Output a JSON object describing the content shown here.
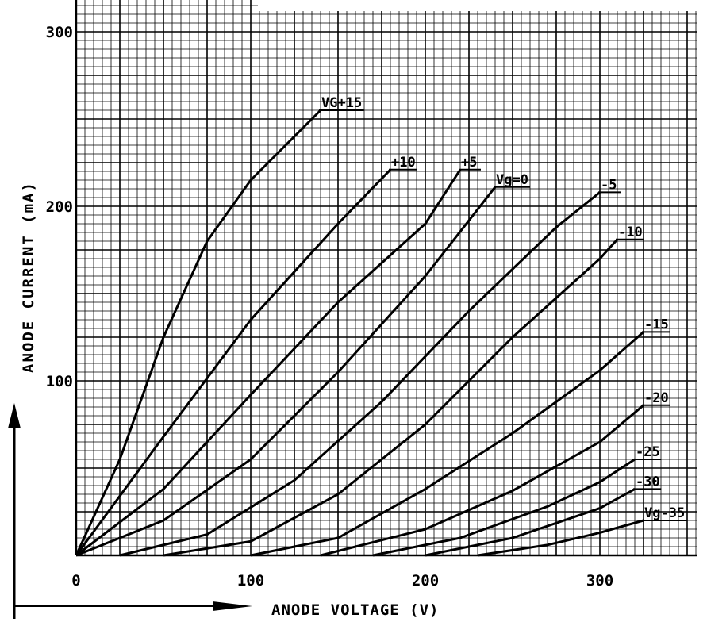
{
  "chart_data": {
    "type": "line",
    "xlabel": "ANODE VOLTAGE (V)",
    "ylabel": "ANODE CURRENT (mA)",
    "xlim": [
      0,
      350
    ],
    "ylim": [
      0,
      320
    ],
    "x_ticks": [
      "0",
      "100",
      "200",
      "300"
    ],
    "y_ticks": [
      "100",
      "200",
      "300"
    ],
    "grid": true,
    "series": [
      {
        "name": "VG+15",
        "points": [
          [
            0,
            0
          ],
          [
            25,
            55
          ],
          [
            50,
            125
          ],
          [
            75,
            180
          ],
          [
            100,
            215
          ],
          [
            140,
            255
          ]
        ]
      },
      {
        "name": "+10",
        "points": [
          [
            0,
            0
          ],
          [
            50,
            68
          ],
          [
            100,
            135
          ],
          [
            150,
            190
          ],
          [
            180,
            221
          ]
        ]
      },
      {
        "name": "+5",
        "points": [
          [
            0,
            0
          ],
          [
            50,
            38
          ],
          [
            100,
            92
          ],
          [
            150,
            145
          ],
          [
            200,
            190
          ],
          [
            220,
            221
          ]
        ]
      },
      {
        "name": "Vg=0",
        "points": [
          [
            0,
            0
          ],
          [
            50,
            20
          ],
          [
            100,
            55
          ],
          [
            150,
            105
          ],
          [
            200,
            160
          ],
          [
            240,
            211
          ]
        ]
      },
      {
        "name": "-5",
        "points": [
          [
            25,
            0
          ],
          [
            75,
            12
          ],
          [
            125,
            43
          ],
          [
            175,
            88
          ],
          [
            225,
            140
          ],
          [
            275,
            188
          ],
          [
            300,
            208
          ]
        ]
      },
      {
        "name": "-10",
        "points": [
          [
            50,
            0
          ],
          [
            100,
            8
          ],
          [
            150,
            35
          ],
          [
            200,
            75
          ],
          [
            250,
            125
          ],
          [
            300,
            170
          ],
          [
            310,
            181
          ]
        ]
      },
      {
        "name": "-15",
        "points": [
          [
            100,
            0
          ],
          [
            150,
            10
          ],
          [
            200,
            38
          ],
          [
            250,
            70
          ],
          [
            300,
            106
          ],
          [
            325,
            128
          ]
        ]
      },
      {
        "name": "-20",
        "points": [
          [
            140,
            0
          ],
          [
            200,
            15
          ],
          [
            250,
            37
          ],
          [
            300,
            65
          ],
          [
            325,
            86
          ]
        ]
      },
      {
        "name": "-25",
        "points": [
          [
            170,
            0
          ],
          [
            220,
            10
          ],
          [
            270,
            28
          ],
          [
            300,
            42
          ],
          [
            320,
            55
          ]
        ]
      },
      {
        "name": "-30",
        "points": [
          [
            200,
            0
          ],
          [
            250,
            10
          ],
          [
            300,
            27
          ],
          [
            320,
            38
          ]
        ]
      },
      {
        "name": "Vg-35",
        "points": [
          [
            230,
            0
          ],
          [
            270,
            6
          ],
          [
            300,
            13
          ],
          [
            325,
            20
          ]
        ]
      }
    ]
  }
}
